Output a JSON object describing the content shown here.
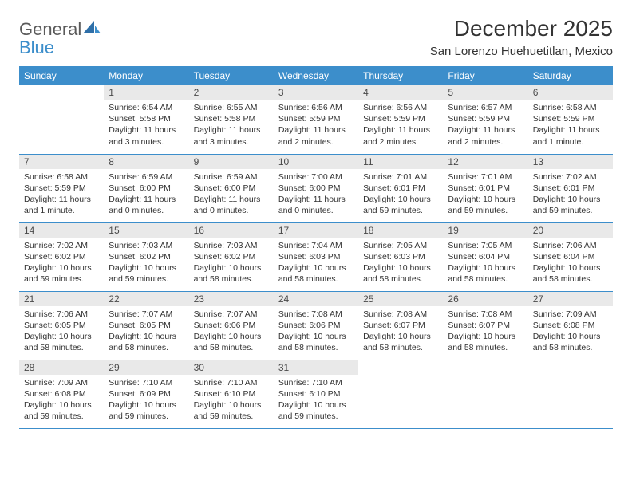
{
  "brand": {
    "part1": "General",
    "part2": "Blue"
  },
  "title": "December 2025",
  "location": "San Lorenzo Huehuetitlan, Mexico",
  "colors": {
    "header_bg": "#3c8ecb",
    "header_text": "#ffffff",
    "daynum_bg": "#e9e9e9",
    "grid_line": "#3c8ecb",
    "body_text": "#333333",
    "logo_gray": "#5a5a5a",
    "logo_blue": "#3c8ecb"
  },
  "dow": [
    "Sunday",
    "Monday",
    "Tuesday",
    "Wednesday",
    "Thursday",
    "Friday",
    "Saturday"
  ],
  "weeks": [
    [
      null,
      {
        "n": "1",
        "sr": "6:54 AM",
        "ss": "5:58 PM",
        "dl": "11 hours and 3 minutes."
      },
      {
        "n": "2",
        "sr": "6:55 AM",
        "ss": "5:58 PM",
        "dl": "11 hours and 3 minutes."
      },
      {
        "n": "3",
        "sr": "6:56 AM",
        "ss": "5:59 PM",
        "dl": "11 hours and 2 minutes."
      },
      {
        "n": "4",
        "sr": "6:56 AM",
        "ss": "5:59 PM",
        "dl": "11 hours and 2 minutes."
      },
      {
        "n": "5",
        "sr": "6:57 AM",
        "ss": "5:59 PM",
        "dl": "11 hours and 2 minutes."
      },
      {
        "n": "6",
        "sr": "6:58 AM",
        "ss": "5:59 PM",
        "dl": "11 hours and 1 minute."
      }
    ],
    [
      {
        "n": "7",
        "sr": "6:58 AM",
        "ss": "5:59 PM",
        "dl": "11 hours and 1 minute."
      },
      {
        "n": "8",
        "sr": "6:59 AM",
        "ss": "6:00 PM",
        "dl": "11 hours and 0 minutes."
      },
      {
        "n": "9",
        "sr": "6:59 AM",
        "ss": "6:00 PM",
        "dl": "11 hours and 0 minutes."
      },
      {
        "n": "10",
        "sr": "7:00 AM",
        "ss": "6:00 PM",
        "dl": "11 hours and 0 minutes."
      },
      {
        "n": "11",
        "sr": "7:01 AM",
        "ss": "6:01 PM",
        "dl": "10 hours and 59 minutes."
      },
      {
        "n": "12",
        "sr": "7:01 AM",
        "ss": "6:01 PM",
        "dl": "10 hours and 59 minutes."
      },
      {
        "n": "13",
        "sr": "7:02 AM",
        "ss": "6:01 PM",
        "dl": "10 hours and 59 minutes."
      }
    ],
    [
      {
        "n": "14",
        "sr": "7:02 AM",
        "ss": "6:02 PM",
        "dl": "10 hours and 59 minutes."
      },
      {
        "n": "15",
        "sr": "7:03 AM",
        "ss": "6:02 PM",
        "dl": "10 hours and 59 minutes."
      },
      {
        "n": "16",
        "sr": "7:03 AM",
        "ss": "6:02 PM",
        "dl": "10 hours and 58 minutes."
      },
      {
        "n": "17",
        "sr": "7:04 AM",
        "ss": "6:03 PM",
        "dl": "10 hours and 58 minutes."
      },
      {
        "n": "18",
        "sr": "7:05 AM",
        "ss": "6:03 PM",
        "dl": "10 hours and 58 minutes."
      },
      {
        "n": "19",
        "sr": "7:05 AM",
        "ss": "6:04 PM",
        "dl": "10 hours and 58 minutes."
      },
      {
        "n": "20",
        "sr": "7:06 AM",
        "ss": "6:04 PM",
        "dl": "10 hours and 58 minutes."
      }
    ],
    [
      {
        "n": "21",
        "sr": "7:06 AM",
        "ss": "6:05 PM",
        "dl": "10 hours and 58 minutes."
      },
      {
        "n": "22",
        "sr": "7:07 AM",
        "ss": "6:05 PM",
        "dl": "10 hours and 58 minutes."
      },
      {
        "n": "23",
        "sr": "7:07 AM",
        "ss": "6:06 PM",
        "dl": "10 hours and 58 minutes."
      },
      {
        "n": "24",
        "sr": "7:08 AM",
        "ss": "6:06 PM",
        "dl": "10 hours and 58 minutes."
      },
      {
        "n": "25",
        "sr": "7:08 AM",
        "ss": "6:07 PM",
        "dl": "10 hours and 58 minutes."
      },
      {
        "n": "26",
        "sr": "7:08 AM",
        "ss": "6:07 PM",
        "dl": "10 hours and 58 minutes."
      },
      {
        "n": "27",
        "sr": "7:09 AM",
        "ss": "6:08 PM",
        "dl": "10 hours and 58 minutes."
      }
    ],
    [
      {
        "n": "28",
        "sr": "7:09 AM",
        "ss": "6:08 PM",
        "dl": "10 hours and 59 minutes."
      },
      {
        "n": "29",
        "sr": "7:10 AM",
        "ss": "6:09 PM",
        "dl": "10 hours and 59 minutes."
      },
      {
        "n": "30",
        "sr": "7:10 AM",
        "ss": "6:10 PM",
        "dl": "10 hours and 59 minutes."
      },
      {
        "n": "31",
        "sr": "7:10 AM",
        "ss": "6:10 PM",
        "dl": "10 hours and 59 minutes."
      },
      null,
      null,
      null
    ]
  ],
  "labels": {
    "sunrise": "Sunrise:",
    "sunset": "Sunset:",
    "daylight": "Daylight:"
  }
}
